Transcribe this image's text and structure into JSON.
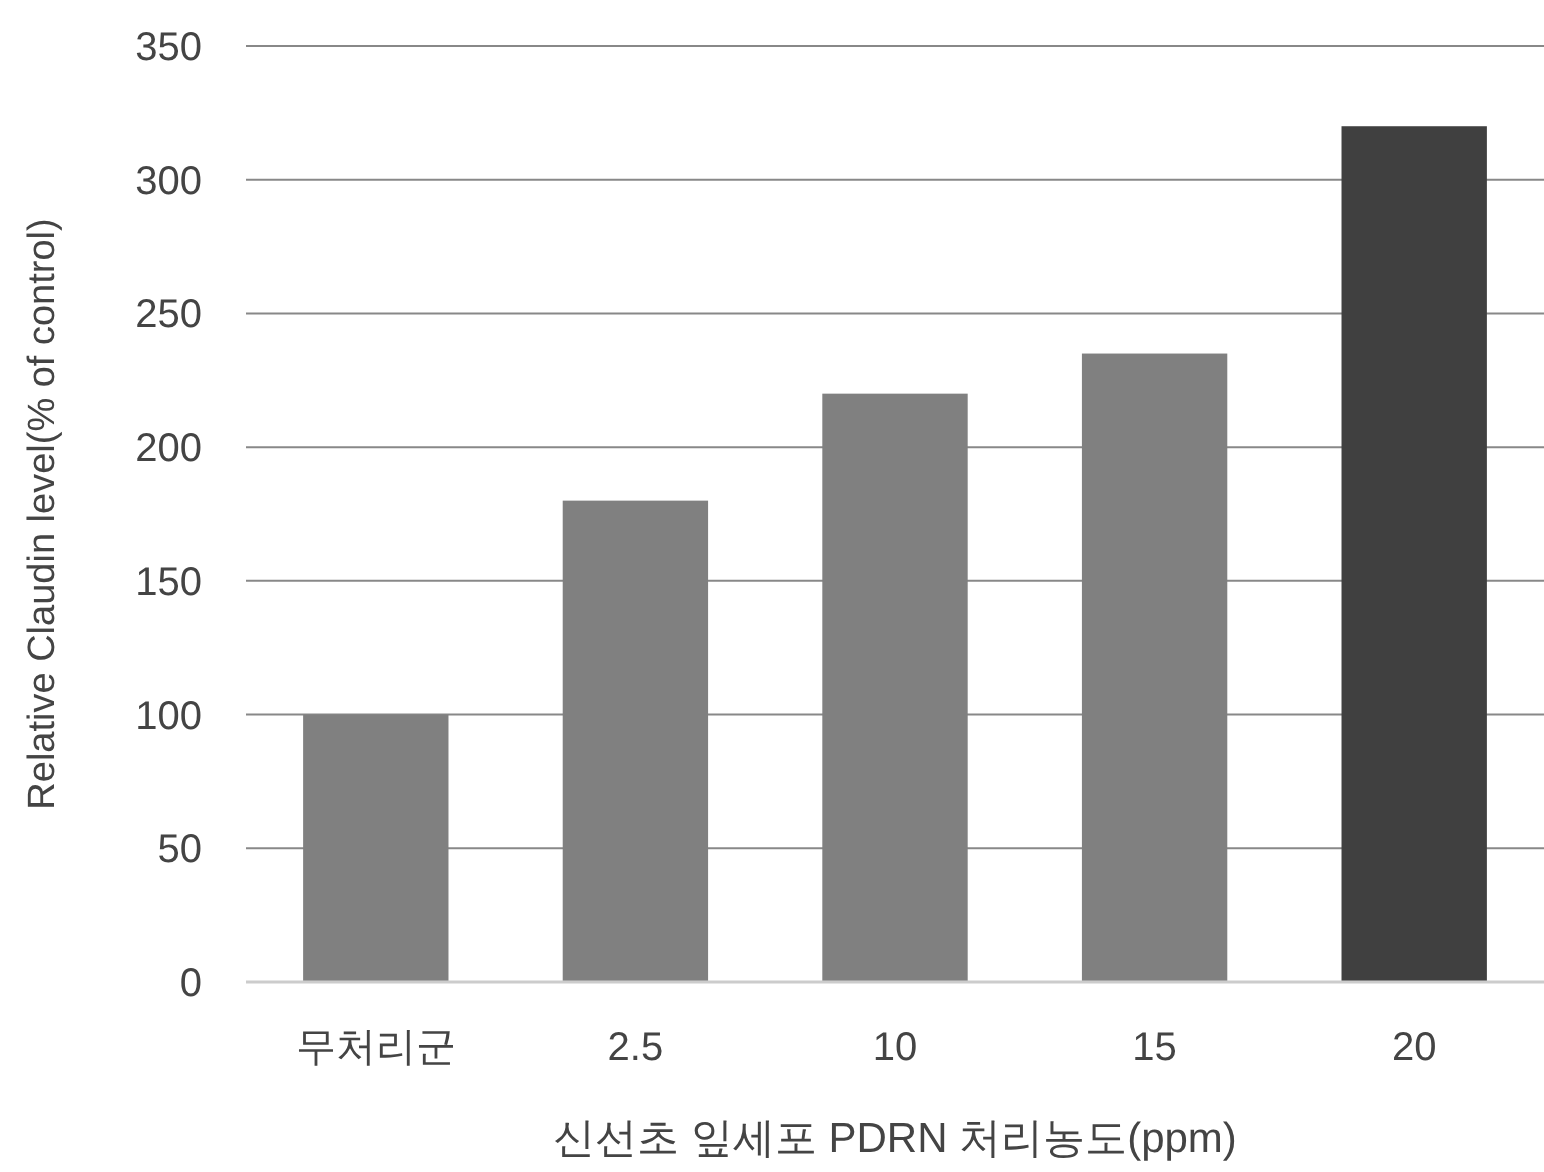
{
  "chart_data": {
    "type": "bar",
    "xlabel": "신선초 잎세포 PDRN 처리농도(ppm)",
    "ylabel": "Relative Claudin level(% of control)",
    "categories": [
      "무처리군",
      "2.5",
      "10",
      "15",
      "20"
    ],
    "values": [
      100,
      180,
      220,
      235,
      320
    ],
    "colors": [
      "#808080",
      "#808080",
      "#808080",
      "#808080",
      "#404040"
    ],
    "ylim": [
      0,
      350
    ],
    "yticks": [
      0,
      50,
      100,
      150,
      200,
      250,
      300,
      350
    ],
    "grid": "y"
  }
}
